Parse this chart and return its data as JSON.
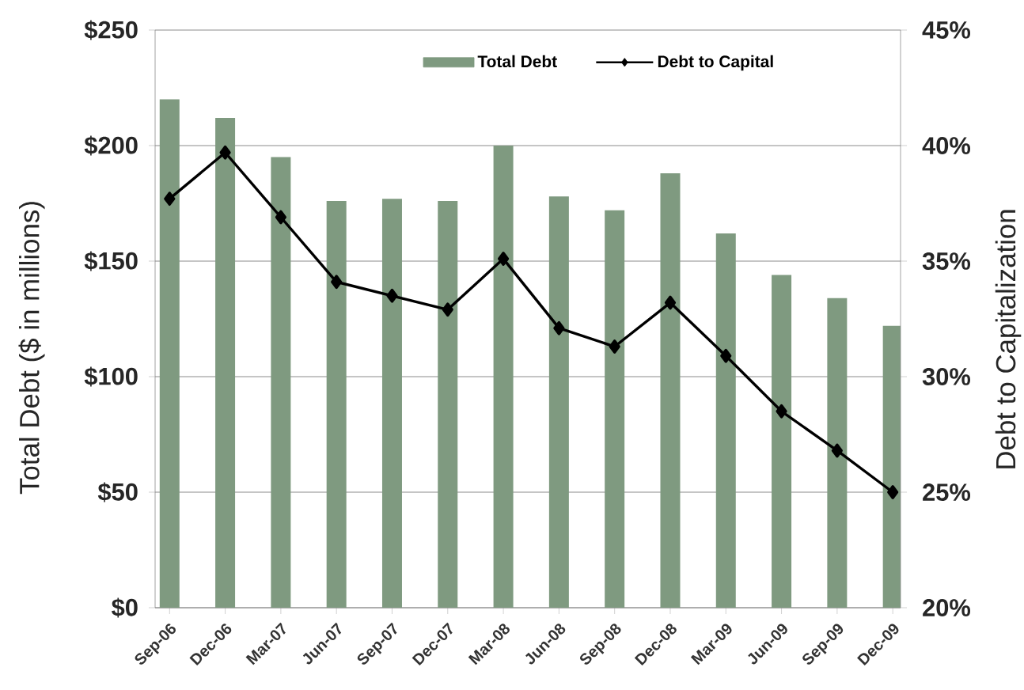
{
  "chart_data": {
    "type": "bar",
    "ylabel": "Total Debt ($ in millions)",
    "y2label": "Debt to Capitalization",
    "categories": [
      "Sep-06",
      "Dec-06",
      "Mar-07",
      "Jun-07",
      "Sep-07",
      "Dec-07",
      "Mar-08",
      "Jun-08",
      "Sep-08",
      "Dec-08",
      "Mar-09",
      "Jun-09",
      "Sep-09",
      "Dec-09"
    ],
    "series": [
      {
        "name": "Total Debt",
        "color": "#7f9a80",
        "values": [
          220,
          212,
          195,
          176,
          177,
          176,
          200,
          178,
          172,
          188,
          162,
          144,
          134,
          122
        ]
      },
      {
        "name": "Debt to Capital",
        "type": "line",
        "axis": "y2",
        "color": "#000000",
        "marker": "diamond",
        "line_style": "solid",
        "values": [
          37.7,
          39.7,
          36.9,
          34.1,
          33.5,
          32.9,
          35.1,
          32.1,
          31.3,
          33.2,
          30.9,
          28.5,
          26.8,
          25.0
        ]
      }
    ],
    "ylim": [
      0,
      250
    ],
    "yticks": [
      {
        "value": 0,
        "label": "$0"
      },
      {
        "value": 50,
        "label": "$50"
      },
      {
        "value": 100,
        "label": "$100"
      },
      {
        "value": 150,
        "label": "$150"
      },
      {
        "value": 200,
        "label": "$200"
      },
      {
        "value": 250,
        "label": "$250"
      }
    ],
    "y2lim": [
      20,
      45
    ],
    "y2ticks": [
      {
        "value": 20,
        "label": "20%"
      },
      {
        "value": 25,
        "label": "25%"
      },
      {
        "value": 30,
        "label": "30%"
      },
      {
        "value": 35,
        "label": "35%"
      },
      {
        "value": 40,
        "label": "40%"
      },
      {
        "value": 45,
        "label": "45%"
      }
    ],
    "grid": "y",
    "legend": "top"
  }
}
